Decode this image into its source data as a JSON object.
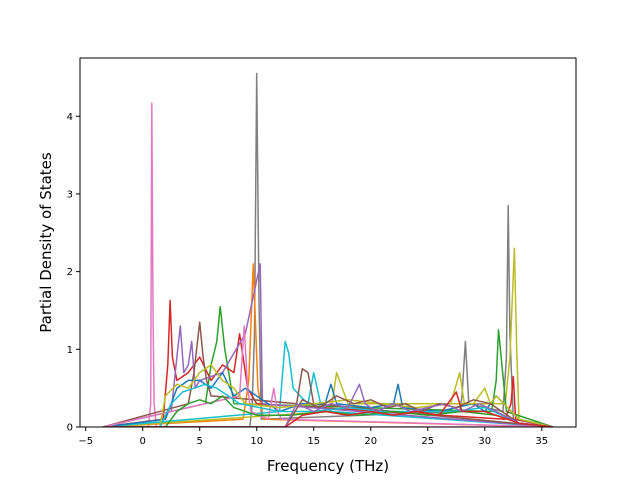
{
  "chart_data": {
    "type": "line",
    "title": "",
    "xlabel": "Frequency (THz)",
    "ylabel": "Partial Density of States",
    "xlim": [
      -5.5,
      38
    ],
    "ylim": [
      0,
      4.75
    ],
    "xticks": [
      -5,
      0,
      5,
      10,
      15,
      20,
      25,
      30,
      35
    ],
    "yticks": [
      0,
      1,
      2,
      3,
      4
    ],
    "grid": false,
    "legend": "none",
    "colors": [
      "#1f77b4",
      "#ff7f0e",
      "#2ca02c",
      "#d62728",
      "#9467bd",
      "#8c564b",
      "#e377c2",
      "#7f7f7f",
      "#bcbd22",
      "#17becf"
    ],
    "series": [
      {
        "color": "#e377c2",
        "x": [
          -3.5,
          0.5,
          0.7,
          0.8,
          0.9,
          1.0,
          1.2,
          36
        ],
        "values": [
          0,
          0,
          0.3,
          4.17,
          1.5,
          0.3,
          0,
          0
        ]
      },
      {
        "color": "#7f7f7f",
        "x": [
          -3.5,
          9.4,
          9.6,
          9.8,
          10.0,
          10.2,
          10.4,
          27.8,
          28.0,
          28.3,
          28.6,
          31.6,
          31.9,
          32.05,
          32.2,
          32.5,
          36
        ],
        "values": [
          0,
          0,
          0.3,
          1.2,
          4.55,
          1.6,
          0.1,
          0.2,
          0.4,
          1.1,
          0.3,
          0.2,
          0.9,
          2.85,
          1.2,
          0.1,
          0
        ]
      },
      {
        "color": "#ff7f0e",
        "x": [
          -3.5,
          8.8,
          9.3,
          9.7,
          9.9,
          10.1,
          10.6,
          36
        ],
        "values": [
          0,
          0.1,
          0.6,
          2.1,
          1.3,
          0.5,
          0.1,
          0
        ]
      },
      {
        "color": "#bcbd22",
        "x": [
          -3.5,
          16.5,
          17.0,
          17.5,
          18.0,
          31.8,
          32.2,
          32.6,
          32.8,
          33.0,
          36
        ],
        "values": [
          0,
          0.2,
          0.7,
          0.5,
          0.3,
          0.3,
          0.9,
          2.3,
          1.0,
          0.1,
          0
        ]
      },
      {
        "color": "#17becf",
        "x": [
          -3.5,
          12.0,
          12.5,
          12.8,
          13.2,
          13.8,
          14.5,
          15.0,
          15.6,
          16.5,
          36
        ],
        "values": [
          0,
          0.2,
          1.1,
          0.95,
          0.5,
          0.4,
          0.3,
          0.7,
          0.3,
          0.2,
          0
        ]
      },
      {
        "color": "#2ca02c",
        "x": [
          -3.5,
          5.5,
          6.0,
          6.5,
          6.8,
          7.2,
          8.0,
          30.6,
          31.0,
          31.2,
          31.5,
          31.9,
          36
        ],
        "values": [
          0,
          0.3,
          0.8,
          1.1,
          1.55,
          1.0,
          0.3,
          0.2,
          0.6,
          1.25,
          0.8,
          0.2,
          0
        ]
      },
      {
        "color": "#d62728",
        "x": [
          -3.5,
          1.8,
          2.2,
          2.4,
          2.6,
          3.0,
          4.0,
          5.0,
          6.0,
          7.0,
          8.0,
          8.5,
          8.8,
          9.2,
          10.0,
          31.8,
          32.3,
          32.5,
          32.7,
          36
        ],
        "values": [
          0,
          0.1,
          0.8,
          1.63,
          0.9,
          0.6,
          0.7,
          0.9,
          0.6,
          0.8,
          0.7,
          1.2,
          0.9,
          0.5,
          0.3,
          0.1,
          0.3,
          0.65,
          0.1,
          0
        ]
      },
      {
        "color": "#9467bd",
        "x": [
          -3.5,
          2.5,
          3.0,
          3.3,
          3.6,
          4.0,
          4.3,
          4.6,
          5.0,
          7.0,
          9.0,
          10.3,
          10.5,
          36
        ],
        "values": [
          0,
          0.2,
          0.9,
          1.3,
          0.7,
          0.8,
          1.1,
          0.5,
          0.6,
          0.7,
          1.2,
          2.1,
          0.3,
          0
        ]
      },
      {
        "color": "#8c564b",
        "x": [
          -3.5,
          4.0,
          4.5,
          5.0,
          5.3,
          5.6,
          6.0,
          13.5,
          14.0,
          14.5,
          15.0,
          36
        ],
        "values": [
          0,
          0.3,
          0.7,
          1.35,
          0.9,
          0.6,
          0.4,
          0.3,
          0.75,
          0.7,
          0.3,
          0
        ]
      },
      {
        "color": "#1f77b4",
        "x": [
          -3.5,
          2.0,
          3.0,
          4.0,
          5.0,
          6.0,
          7.0,
          8.0,
          9.0,
          12.0,
          14.0,
          16.0,
          16.5,
          17.0,
          20.0,
          22.0,
          22.4,
          22.8,
          26.0,
          29.0,
          30.0,
          31.0,
          33.0,
          36
        ],
        "values": [
          0,
          0.1,
          0.5,
          0.6,
          0.6,
          0.5,
          0.7,
          0.4,
          0.5,
          0.2,
          0.3,
          0.3,
          0.55,
          0.3,
          0.25,
          0.3,
          0.55,
          0.25,
          0.2,
          0.3,
          0.2,
          0.4,
          0.1,
          0
        ]
      },
      {
        "color": "#e377c2",
        "x": [
          -3.5,
          8.5,
          8.9,
          9.2,
          9.5,
          11.0,
          11.5,
          11.8,
          12.2,
          36
        ],
        "values": [
          0,
          0.4,
          1.3,
          0.5,
          0.2,
          0.1,
          0.5,
          0.2,
          0.1,
          0
        ]
      },
      {
        "color": "#bcbd22",
        "x": [
          -3.5,
          1.5,
          2.0,
          3.0,
          4.0,
          5.0,
          6.0,
          7.0,
          8.0,
          9.0,
          12.0,
          15.0,
          18.0,
          21.0,
          24.0,
          27.0,
          27.8,
          28.2,
          29.0,
          30.0,
          30.5,
          31.0,
          33.0,
          36
        ],
        "values": [
          0,
          0,
          0.4,
          0.55,
          0.5,
          0.7,
          0.8,
          0.6,
          0.5,
          0.3,
          0.25,
          0.3,
          0.35,
          0.3,
          0.25,
          0.3,
          0.7,
          0.3,
          0.3,
          0.5,
          0.3,
          0.4,
          0.1,
          0
        ]
      },
      {
        "color": "#17becf",
        "x": [
          -3.5,
          1.5,
          2.5,
          3.5,
          4.5,
          5.5,
          6.5,
          7.5,
          8.5,
          12.0,
          15.0,
          18.0,
          21.0,
          24.0,
          27.0,
          30.0,
          33.0,
          36
        ],
        "values": [
          0,
          0,
          0.3,
          0.45,
          0.5,
          0.55,
          0.5,
          0.4,
          0.3,
          0.2,
          0.2,
          0.25,
          0.2,
          0.2,
          0.2,
          0.25,
          0.05,
          0
        ]
      },
      {
        "color": "#2ca02c",
        "x": [
          -3.5,
          2.0,
          3.0,
          4.0,
          5.0,
          6.0,
          7.0,
          8.0,
          10.0,
          13.0,
          16.0,
          19.0,
          22.0,
          25.0,
          28.0,
          31.0,
          33.0,
          36
        ],
        "values": [
          0,
          0,
          0.2,
          0.3,
          0.35,
          0.3,
          0.4,
          0.25,
          0.15,
          0.15,
          0.2,
          0.15,
          0.2,
          0.15,
          0.2,
          0.15,
          0.05,
          0
        ]
      },
      {
        "color": "#8c564b",
        "x": [
          -3.5,
          12.5,
          14.0,
          15.5,
          17.0,
          18.5,
          20.0,
          21.5,
          23.0,
          24.5,
          26.0,
          27.5,
          29.0,
          30.5,
          33.0,
          36
        ],
        "values": [
          0,
          0,
          0.35,
          0.25,
          0.4,
          0.3,
          0.35,
          0.25,
          0.3,
          0.2,
          0.3,
          0.25,
          0.35,
          0.3,
          0.05,
          0
        ]
      },
      {
        "color": "#9467bd",
        "x": [
          -3.5,
          12.5,
          13.5,
          15.0,
          16.5,
          18.0,
          19.0,
          19.5,
          20.5,
          22.0,
          23.5,
          25.0,
          26.5,
          28.0,
          29.5,
          31.0,
          33.0,
          36
        ],
        "values": [
          0,
          0,
          0.3,
          0.2,
          0.3,
          0.25,
          0.55,
          0.3,
          0.2,
          0.3,
          0.2,
          0.25,
          0.3,
          0.2,
          0.3,
          0.2,
          0.05,
          0
        ]
      },
      {
        "color": "#d62728",
        "x": [
          -3.5,
          12.5,
          14.0,
          16.0,
          18.0,
          20.0,
          22.0,
          24.0,
          26.0,
          27.0,
          27.5,
          28.0,
          30.0,
          33.0,
          36
        ],
        "values": [
          0,
          0,
          0.15,
          0.2,
          0.15,
          0.2,
          0.15,
          0.2,
          0.15,
          0.35,
          0.45,
          0.2,
          0.2,
          0.05,
          0
        ]
      }
    ]
  }
}
